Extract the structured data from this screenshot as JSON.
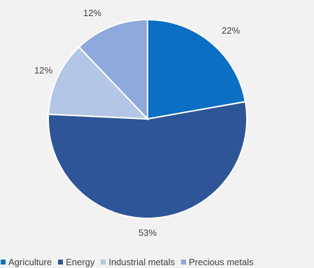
{
  "chart_data": {
    "type": "pie",
    "title": "",
    "start_angle_deg": 0,
    "direction": "clockwise",
    "slices": [
      {
        "name": "Agriculture",
        "value": 22,
        "label": "22%",
        "color": "#0b6fc4"
      },
      {
        "name": "Energy",
        "value": 53,
        "label": "53%",
        "color": "#2e5597"
      },
      {
        "name": "Industrial metals",
        "value": 12,
        "label": "12%",
        "color": "#b4c6e7"
      },
      {
        "name": "Precious metals",
        "value": 12,
        "label": "12%",
        "color": "#8ea9db"
      }
    ],
    "legend_position": "bottom"
  }
}
